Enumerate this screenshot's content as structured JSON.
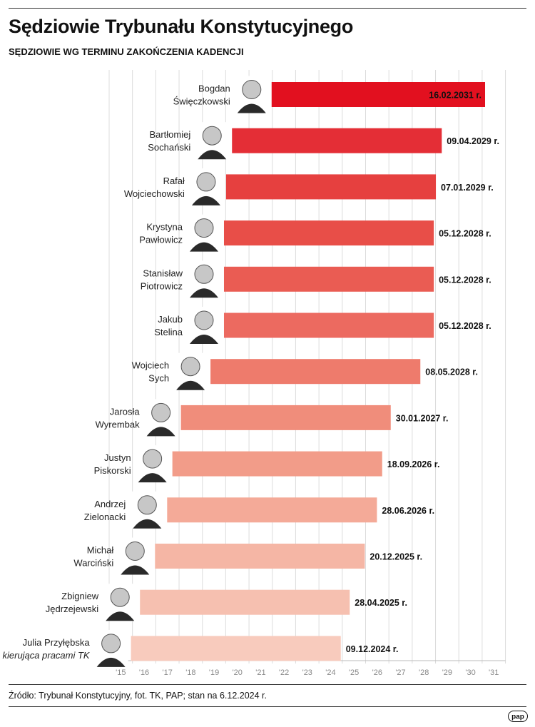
{
  "title": "Sędziowie Trybunału Konstytucyjnego",
  "subtitle": "SĘDZIOWIE WG TERMINU ZAKOŃCZENIA KADENCJI",
  "source": "Źródło: Trybunał Konstytucyjny, fot. TK, PAP; stan na 6.12.2024 r.",
  "logo": "pap",
  "chart_data": {
    "type": "bar",
    "orientation": "horizontal",
    "x_tick_labels": [
      "'15",
      "'16",
      "'17",
      "'18",
      "'19",
      "'20",
      "'21",
      "'22",
      "'23",
      "'24",
      "'25",
      "'26",
      "'27",
      "'28",
      "'29",
      "'30",
      "'31"
    ],
    "x_range": [
      2015,
      2031
    ],
    "bars": [
      {
        "name_lines": [
          "Bogdan",
          "Święczkowski"
        ],
        "role": "",
        "start": "2021-12-21",
        "end": "2031-02-16",
        "label": "16.02.2031 r.",
        "color": "#e2101f"
      },
      {
        "name_lines": [
          "Bartłomiej",
          "Sochański"
        ],
        "role": "",
        "start": "2020-04-09",
        "end": "2029-04-09",
        "label": "09.04.2029 r.",
        "color": "#e42e36"
      },
      {
        "name_lines": [
          "Rafał",
          "Wojciechowski"
        ],
        "role": "",
        "start": "2020-01-07",
        "end": "2029-01-07",
        "label": "07.01.2029 r.",
        "color": "#e6403f"
      },
      {
        "name_lines": [
          "Krystyna",
          "Pawłowicz"
        ],
        "role": "",
        "start": "2019-12-05",
        "end": "2028-12-05",
        "label": "05.12.2028 r.",
        "color": "#e84e48"
      },
      {
        "name_lines": [
          "Stanisław",
          "Piotrowicz"
        ],
        "role": "",
        "start": "2019-12-05",
        "end": "2028-12-05",
        "label": "05.12.2028 r.",
        "color": "#ea5c53"
      },
      {
        "name_lines": [
          "Jakub",
          "Stelina"
        ],
        "role": "",
        "start": "2019-12-05",
        "end": "2028-12-05",
        "label": "05.12.2028 r.",
        "color": "#ec6a60"
      },
      {
        "name_lines": [
          "Wojciech",
          "Sych"
        ],
        "role": "",
        "start": "2019-05-08",
        "end": "2028-05-08",
        "label": "08.05.2028 r.",
        "color": "#ee7b6c"
      },
      {
        "name_lines": [
          "Jarosła",
          "Wyrembak"
        ],
        "role": "",
        "start": "2018-01-30",
        "end": "2027-01-30",
        "label": "30.01.2027 r.",
        "color": "#f08d7b"
      },
      {
        "name_lines": [
          "Justyn",
          "Piskorski"
        ],
        "role": "",
        "start": "2017-09-18",
        "end": "2026-09-18",
        "label": "18.09.2026 r.",
        "color": "#f29c89"
      },
      {
        "name_lines": [
          "Andrzej",
          "Zielonacki"
        ],
        "role": "",
        "start": "2017-06-28",
        "end": "2026-06-28",
        "label": "28.06.2026 r.",
        "color": "#f4aa98"
      },
      {
        "name_lines": [
          "Michał",
          "Warciński"
        ],
        "role": "",
        "start": "2016-12-20",
        "end": "2025-12-20",
        "label": "20.12.2025 r.",
        "color": "#f5b6a5"
      },
      {
        "name_lines": [
          "Zbigniew",
          "Jędrzejewski"
        ],
        "role": "",
        "start": "2016-04-28",
        "end": "2025-04-28",
        "label": "28.04.2025 r.",
        "color": "#f6c0b0"
      },
      {
        "name_lines": [
          "Julia Przyłębska"
        ],
        "role": "kierująca pracami TK",
        "start": "2015-12-09",
        "end": "2024-12-09",
        "label": "09.12.2024 r.",
        "color": "#f8cbbd"
      }
    ],
    "grid": true
  }
}
